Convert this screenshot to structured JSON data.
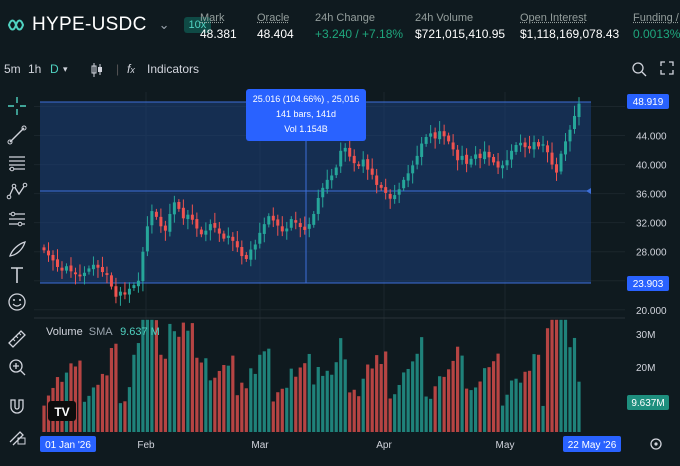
{
  "header": {
    "pair": "HYPE-USDC",
    "leverage": "10x",
    "stats": [
      {
        "label": "Mark",
        "value": "48.381",
        "underline": true
      },
      {
        "label": "Oracle",
        "value": "48.404",
        "underline": true
      },
      {
        "label": "24h Change",
        "value": "+3.240 / +7.18%",
        "positive": true
      },
      {
        "label": "24h Volume",
        "value": "$721,015,410.95"
      },
      {
        "label": "Open Interest",
        "value": "$1,118,169,078.43",
        "underline": true
      },
      {
        "label": "Funding /",
        "value": "0.0013%",
        "underline": true,
        "positive": true
      }
    ]
  },
  "toolbar": {
    "intervals": [
      "5m",
      "1h",
      "D"
    ],
    "active_interval": "D",
    "indicators_label": "Indicators"
  },
  "left_tools": [
    "crosshair-icon",
    "trendline-icon",
    "fib-icon",
    "pattern-icon",
    "projection-icon",
    "brush-icon",
    "text-icon",
    "emoji-icon",
    "ruler-icon",
    "zoom-in-icon",
    "magnet-icon",
    "lock-draw-icon"
  ],
  "measure": {
    "line1": "25.016 (104.66%) , 25,016",
    "line2": "141 bars, 141d",
    "line3": "Vol 1.154B"
  },
  "price_axis": {
    "ticks": [
      "44.000",
      "40.000",
      "36.000",
      "32.000",
      "28.000",
      "20.000"
    ],
    "top_label": "48.919",
    "bottom_label": "23.903"
  },
  "volume": {
    "label": "Volume",
    "sma_label": "SMA",
    "sma_value": "9.637 M",
    "ticks": [
      "30M",
      "20M"
    ],
    "badge": "9.637M"
  },
  "time_axis": {
    "start_label": "01 Jan '26",
    "months": [
      "Feb",
      "Mar",
      "Apr",
      "May"
    ],
    "end_label": "22 May '26"
  },
  "watermark": "TV",
  "colors": {
    "bg": "#0f1a1f",
    "up": "#26a69a",
    "down": "#ef5350",
    "accent": "#2962ff",
    "teal": "#50d2c1"
  },
  "chart_data": {
    "type": "candlestick",
    "x_range": [
      "2026-01-01",
      "2026-05-22"
    ],
    "y_range": [
      20,
      48
    ],
    "closes": [
      28.2,
      27.5,
      26.8,
      25.9,
      25.4,
      26.0,
      25.3,
      24.9,
      24.6,
      25.1,
      25.7,
      26.2,
      25.8,
      25.2,
      24.8,
      23.2,
      21.8,
      22.5,
      22.1,
      22.9,
      23.4,
      24.0,
      28.0,
      31.5,
      33.6,
      32.8,
      31.5,
      30.9,
      33.2,
      34.8,
      33.9,
      32.6,
      33.1,
      32.4,
      31.2,
      30.4,
      30.9,
      31.8,
      31.3,
      30.5,
      29.8,
      30.2,
      29.5,
      28.6,
      27.4,
      27.0,
      28.3,
      29.0,
      30.6,
      31.8,
      32.9,
      32.3,
      31.6,
      30.8,
      31.2,
      32.5,
      32.0,
      31.4,
      31.0,
      31.8,
      33.2,
      35.4,
      36.8,
      37.9,
      38.5,
      39.6,
      41.9,
      42.3,
      41.1,
      40.2,
      39.8,
      40.7,
      39.3,
      38.6,
      37.2,
      36.8,
      36.1,
      35.3,
      35.8,
      36.6,
      37.9,
      38.8,
      39.9,
      41.2,
      42.9,
      43.8,
      44.3,
      43.6,
      44.6,
      43.9,
      43.2,
      42.1,
      40.6,
      41.2,
      40.1,
      40.8,
      41.4,
      40.9,
      41.8,
      41.0,
      40.3,
      39.6,
      39.9,
      40.6,
      41.9,
      42.7,
      43.0,
      42.4,
      42.2,
      43.1,
      42.5,
      42.8,
      41.7,
      40.0,
      38.9,
      41.5,
      43.2,
      44.8,
      46.7,
      48.4
    ]
  }
}
